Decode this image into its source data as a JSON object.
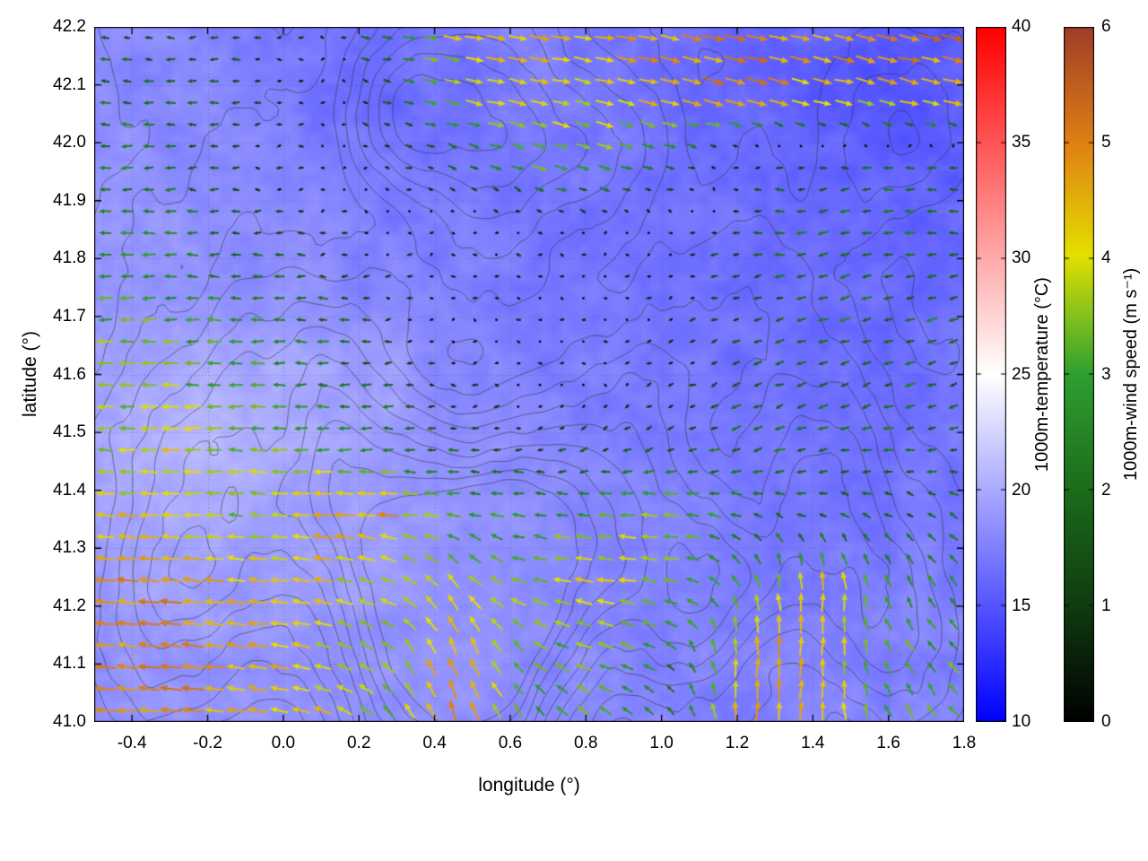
{
  "chart_data": {
    "type": "heatmap",
    "subtype": "temperature-field-with-wind-vectors-and-terrain-contours",
    "title": "",
    "xlabel": "longitude (°)",
    "ylabel": "latitude (°)",
    "xlim": [
      -0.5,
      1.8
    ],
    "ylim": [
      41.0,
      42.2
    ],
    "grid": true,
    "x_ticks": [
      {
        "v": -0.4,
        "label": "-0.4"
      },
      {
        "v": -0.2,
        "label": "-0.2"
      },
      {
        "v": 0.0,
        "label": "0.0"
      },
      {
        "v": 0.2,
        "label": "0.2"
      },
      {
        "v": 0.4,
        "label": "0.4"
      },
      {
        "v": 0.6,
        "label": "0.6"
      },
      {
        "v": 0.8,
        "label": "0.8"
      },
      {
        "v": 1.0,
        "label": "1.0"
      },
      {
        "v": 1.2,
        "label": "1.2"
      },
      {
        "v": 1.4,
        "label": "1.4"
      },
      {
        "v": 1.6,
        "label": "1.6"
      },
      {
        "v": 1.8,
        "label": "1.8"
      }
    ],
    "y_ticks": [
      {
        "v": 41.0,
        "label": "41.0"
      },
      {
        "v": 41.1,
        "label": "41.1"
      },
      {
        "v": 41.2,
        "label": "41.2"
      },
      {
        "v": 41.3,
        "label": "41.3"
      },
      {
        "v": 41.4,
        "label": "41.4"
      },
      {
        "v": 41.5,
        "label": "41.5"
      },
      {
        "v": 41.6,
        "label": "41.6"
      },
      {
        "v": 41.7,
        "label": "41.7"
      },
      {
        "v": 41.8,
        "label": "41.8"
      },
      {
        "v": 41.9,
        "label": "41.9"
      },
      {
        "v": 42.0,
        "label": "42.0"
      },
      {
        "v": 42.1,
        "label": "42.1"
      },
      {
        "v": 42.2,
        "label": "42.2"
      }
    ],
    "colorbars": [
      {
        "id": "temperature",
        "label": "1000m-temperature (°C)",
        "min": 10,
        "max": 40,
        "ticks": [
          {
            "v": 10,
            "label": "10"
          },
          {
            "v": 15,
            "label": "15"
          },
          {
            "v": 20,
            "label": "20"
          },
          {
            "v": 25,
            "label": "25"
          },
          {
            "v": 30,
            "label": "30"
          },
          {
            "v": 35,
            "label": "35"
          },
          {
            "v": 40,
            "label": "40"
          }
        ],
        "stops": [
          [
            0,
            "#0000ff"
          ],
          [
            0.5,
            "#ffffff"
          ],
          [
            1,
            "#ff0000"
          ]
        ]
      },
      {
        "id": "wind-speed",
        "label": "1000m-wind speed (m s⁻¹)",
        "min": 0,
        "max": 6,
        "ticks": [
          {
            "v": 0,
            "label": "0"
          },
          {
            "v": 1,
            "label": "1"
          },
          {
            "v": 2,
            "label": "2"
          },
          {
            "v": 3,
            "label": "3"
          },
          {
            "v": 4,
            "label": "4"
          },
          {
            "v": 5,
            "label": "5"
          },
          {
            "v": 6,
            "label": "6"
          }
        ],
        "stops": [
          [
            0,
            "#000000"
          ],
          [
            0.17,
            "#103c10"
          ],
          [
            0.33,
            "#1b6b1b"
          ],
          [
            0.5,
            "#2f9e30"
          ],
          [
            0.58,
            "#7ebf1e"
          ],
          [
            0.67,
            "#e3e000"
          ],
          [
            0.83,
            "#e08214"
          ],
          [
            1,
            "#a03c28"
          ]
        ]
      }
    ],
    "temperature": {
      "units": "°C",
      "grid": [
        [
          18.0,
          17.8,
          17.5,
          17.2,
          16.8,
          17.3,
          17.5,
          17.0,
          16.6,
          16.2,
          15.8,
          15.4,
          15.6
        ],
        [
          18.2,
          18.0,
          17.6,
          17.0,
          16.4,
          16.9,
          17.1,
          16.9,
          16.5,
          16.0,
          15.5,
          14.8,
          15.2
        ],
        [
          18.5,
          18.2,
          18.0,
          17.5,
          17.0,
          17.0,
          17.1,
          17.0,
          16.6,
          16.4,
          15.9,
          15.5,
          15.9
        ],
        [
          18.8,
          18.6,
          18.2,
          18.0,
          17.6,
          17.4,
          17.1,
          17.0,
          16.9,
          16.6,
          16.4,
          16.1,
          16.1
        ],
        [
          19.2,
          19.0,
          18.7,
          18.5,
          18.0,
          17.6,
          17.2,
          17.0,
          16.9,
          16.6,
          16.5,
          16.4,
          16.5
        ],
        [
          19.5,
          19.8,
          20.2,
          19.8,
          19.2,
          18.2,
          17.6,
          17.2,
          17.0,
          16.7,
          16.5,
          16.5,
          16.6
        ],
        [
          19.6,
          20.2,
          20.6,
          20.2,
          19.4,
          18.6,
          18.0,
          17.5,
          17.1,
          16.9,
          16.7,
          16.9,
          17.0
        ],
        [
          19.5,
          19.8,
          19.9,
          19.4,
          19.1,
          18.7,
          18.1,
          17.7,
          17.4,
          17.1,
          17.0,
          17.1,
          17.1
        ],
        [
          19.1,
          19.3,
          19.3,
          19.1,
          18.8,
          18.6,
          18.2,
          18.0,
          17.6,
          17.4,
          17.2,
          17.4,
          17.5
        ],
        [
          18.7,
          19.0,
          19.0,
          18.8,
          18.6,
          18.5,
          18.1,
          18.0,
          17.9,
          17.6,
          17.5,
          17.6,
          17.6
        ],
        [
          18.5,
          18.6,
          18.6,
          18.5,
          18.4,
          18.1,
          18.0,
          17.9,
          17.9,
          17.6,
          17.6,
          17.9,
          17.7
        ]
      ]
    },
    "wind": {
      "units": "m s⁻¹",
      "u": [
        [
          -1.5,
          -1.5,
          -1.2,
          -0.5,
          2.5,
          4.0,
          4.5,
          4.5,
          4.5,
          5.0,
          4.5,
          5.0,
          5.0
        ],
        [
          -2.0,
          -2.0,
          -1.5,
          -0.5,
          1.5,
          3.5,
          4.0,
          4.0,
          4.5,
          5.0,
          4.0,
          4.5,
          4.5
        ],
        [
          -2.5,
          -2.0,
          -1.0,
          -0.5,
          0.5,
          1.5,
          3.0,
          3.0,
          2.0,
          -1.0,
          -1.5,
          -2.0,
          -1.5
        ],
        [
          -2.5,
          -2.5,
          -1.5,
          -1.0,
          -0.5,
          -0.5,
          -0.3,
          -0.3,
          -0.5,
          -1.5,
          -2.0,
          -2.0,
          -1.5
        ],
        [
          -3.0,
          -3.0,
          -2.5,
          -2.0,
          -1.0,
          -0.5,
          -0.3,
          -0.3,
          -0.5,
          -1.5,
          -2.0,
          -2.0,
          -2.0
        ],
        [
          -3.5,
          -3.5,
          -3.0,
          -2.5,
          -1.5,
          -0.5,
          -0.3,
          -0.3,
          -0.5,
          -1.5,
          -2.0,
          -2.0,
          -1.5
        ],
        [
          -3.5,
          -4.0,
          -3.5,
          -3.0,
          -2.5,
          -1.5,
          -1.0,
          -1.0,
          -1.5,
          -2.0,
          -2.0,
          -2.0,
          -1.5
        ],
        [
          -4.0,
          -4.0,
          -3.5,
          -4.5,
          -4.5,
          -3.0,
          -2.5,
          -3.5,
          -3.5,
          -2.0,
          -1.5,
          -1.5,
          -2.0
        ],
        [
          -4.5,
          -5.0,
          -4.5,
          -4.0,
          -3.5,
          -2.5,
          -3.5,
          -4.0,
          -3.5,
          -1.0,
          0.0,
          -1.0,
          -2.0
        ],
        [
          -5.0,
          -5.0,
          -4.5,
          -4.0,
          -2.5,
          -2.0,
          -2.5,
          -3.5,
          -2.0,
          0.0,
          0.3,
          -1.5,
          -2.2
        ],
        [
          -5.0,
          -5.0,
          -4.5,
          -4.0,
          -2.5,
          -1.8,
          -2.0,
          -2.5,
          -1.5,
          0.3,
          0.5,
          -1.5,
          -2.0
        ]
      ],
      "v": [
        [
          0,
          0,
          0,
          0,
          -0.3,
          -0.5,
          -0.5,
          -0.5,
          -0.8,
          -1.0,
          -1.0,
          -1.2,
          -1.0
        ],
        [
          0,
          0,
          0,
          0,
          -0.3,
          -0.8,
          -0.8,
          -1.0,
          -1.2,
          -1.5,
          -1.0,
          -1.2,
          -1.0
        ],
        [
          0,
          0,
          0,
          0,
          0,
          -0.5,
          -1.0,
          -1.0,
          -0.5,
          0,
          0,
          0,
          0
        ],
        [
          0,
          0,
          0,
          0,
          0,
          0,
          0,
          0,
          0,
          0,
          -0.3,
          -0.3,
          0
        ],
        [
          0,
          0,
          0,
          0,
          0,
          0,
          0,
          0,
          -0.3,
          -0.3,
          -0.5,
          -0.5,
          -0.3
        ],
        [
          0,
          0,
          0,
          0,
          0,
          0,
          0,
          0,
          -0.3,
          -0.5,
          -0.5,
          -0.5,
          -0.5
        ],
        [
          0,
          0,
          0,
          0,
          0,
          -0.3,
          -0.3,
          -0.5,
          -0.8,
          -0.8,
          -0.5,
          -0.5,
          -0.5
        ],
        [
          0.3,
          0.3,
          0.3,
          0.3,
          0.5,
          0.5,
          0.5,
          0.3,
          0.3,
          0.5,
          0.5,
          0.8,
          1.0
        ],
        [
          0.5,
          0.5,
          0.5,
          0.5,
          1.5,
          3.0,
          1.0,
          0.5,
          0.5,
          3.0,
          4.5,
          2.5,
          2.0
        ],
        [
          0.5,
          0.5,
          0.5,
          0.8,
          2.0,
          4.5,
          2.0,
          1.0,
          1.5,
          4.5,
          4.5,
          2.5,
          2.2
        ],
        [
          0.5,
          0.8,
          0.8,
          1.0,
          2.5,
          5.0,
          2.5,
          1.5,
          2.0,
          4.5,
          4.5,
          2.8,
          2.5
        ]
      ]
    },
    "terrain": {
      "contour_levels": [
        0.15,
        0.3,
        0.45,
        0.6,
        0.75,
        0.9,
        1.05,
        1.2,
        1.35,
        1.5,
        1.65
      ],
      "bumps": [
        {
          "x": 0.45,
          "y": 41.12,
          "s": 0.2,
          "a": 1.7
        },
        {
          "x": 0.55,
          "y": 41.28,
          "s": 0.13,
          "a": 1.0
        },
        {
          "x": 0.22,
          "y": 41.38,
          "s": 0.14,
          "a": 0.8
        },
        {
          "x": -0.18,
          "y": 41.45,
          "s": 0.22,
          "a": 0.8
        },
        {
          "x": -0.32,
          "y": 41.18,
          "s": 0.16,
          "a": 0.7
        },
        {
          "x": 0.12,
          "y": 41.62,
          "s": 0.14,
          "a": 0.5
        },
        {
          "x": 0.55,
          "y": 42.02,
          "s": 0.18,
          "a": 0.9
        },
        {
          "x": 0.3,
          "y": 42.08,
          "s": 0.1,
          "a": 0.6
        },
        {
          "x": 0.85,
          "y": 41.98,
          "s": 0.12,
          "a": 0.5
        },
        {
          "x": 0.8,
          "y": 41.33,
          "s": 0.16,
          "a": 1.0
        },
        {
          "x": 1.1,
          "y": 41.22,
          "s": 0.13,
          "a": 0.9
        },
        {
          "x": 1.45,
          "y": 41.38,
          "s": 0.16,
          "a": 0.8
        },
        {
          "x": 1.62,
          "y": 41.15,
          "s": 0.12,
          "a": 0.6
        },
        {
          "x": 1.62,
          "y": 42.02,
          "s": 0.13,
          "a": 0.6
        },
        {
          "x": 1.25,
          "y": 41.72,
          "s": 0.15,
          "a": 0.4
        },
        {
          "x": 0.95,
          "y": 41.55,
          "s": 0.12,
          "a": 0.45
        }
      ]
    }
  }
}
